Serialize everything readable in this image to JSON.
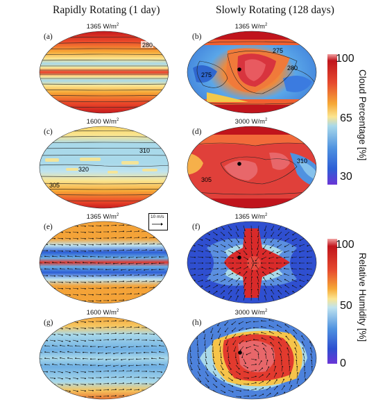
{
  "columns": {
    "left": "Rapidly Rotating (1 day)",
    "right": "Slowly Rotating (128 days)"
  },
  "panels": [
    {
      "label": "(a)",
      "flux_value": "1365",
      "flux_unit": "W/m",
      "flux_exp": "2",
      "variable": "cloud",
      "contours": [
        "280"
      ]
    },
    {
      "label": "(b)",
      "flux_value": "1365",
      "flux_unit": "W/m",
      "flux_exp": "2",
      "variable": "cloud",
      "contours": [
        "275",
        "275",
        "280"
      ]
    },
    {
      "label": "(c)",
      "flux_value": "1600",
      "flux_unit": "W/m",
      "flux_exp": "2",
      "variable": "cloud",
      "contours": [
        "310",
        "320",
        "305"
      ]
    },
    {
      "label": "(d)",
      "flux_value": "3000",
      "flux_unit": "W/m",
      "flux_exp": "2",
      "variable": "cloud",
      "contours": [
        "310",
        "305"
      ]
    },
    {
      "label": "(e)",
      "flux_value": "1365",
      "flux_unit": "W/m",
      "flux_exp": "2",
      "variable": "humidity"
    },
    {
      "label": "(f)",
      "flux_value": "1365",
      "flux_unit": "W/m",
      "flux_exp": "2",
      "variable": "humidity"
    },
    {
      "label": "(g)",
      "flux_value": "1600",
      "flux_unit": "W/m",
      "flux_exp": "2",
      "variable": "humidity"
    },
    {
      "label": "(h)",
      "flux_value": "3000",
      "flux_unit": "W/m",
      "flux_exp": "2",
      "variable": "humidity"
    }
  ],
  "wind_reference": "10 m/s",
  "colorbars": {
    "cloud": {
      "title": "Cloud Percentage [%]",
      "ticks": [
        "100",
        "65",
        "30"
      ]
    },
    "humidity": {
      "title": "Relative Humidity [%]",
      "ticks": [
        "100",
        "50",
        "0"
      ]
    }
  }
}
